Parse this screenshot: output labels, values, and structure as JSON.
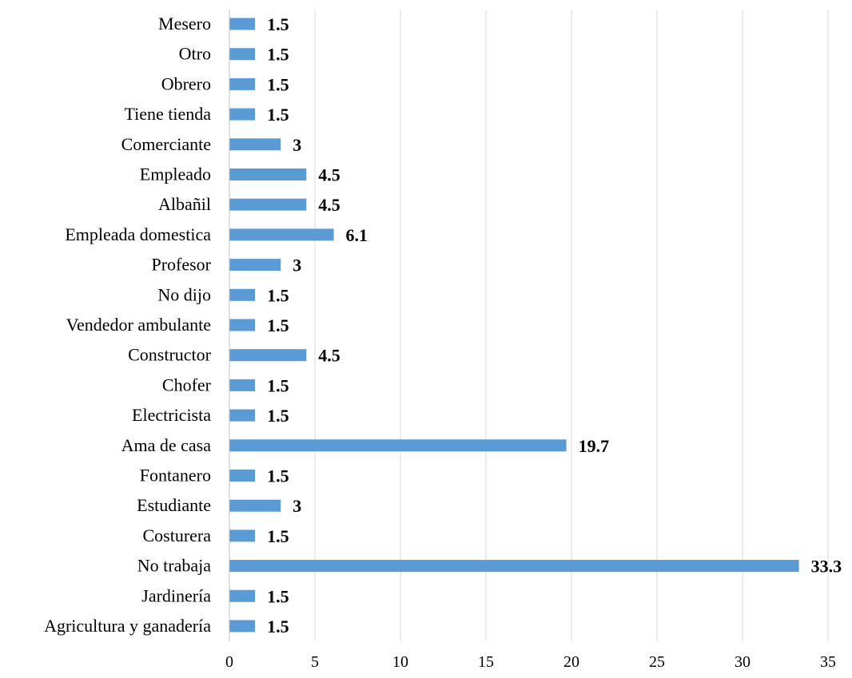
{
  "chart_data": {
    "type": "bar",
    "orientation": "horizontal",
    "title": "",
    "xlabel": "",
    "ylabel": "",
    "categories": [
      "Mesero",
      "Otro",
      "Obrero",
      "Tiene tienda",
      "Comerciante",
      "Empleado",
      "Albañil",
      "Empleada domestica",
      "Profesor",
      "No dijo",
      "Vendedor ambulante",
      "Constructor",
      "Chofer",
      "Electricista",
      "Ama de casa",
      "Fontanero",
      "Estudiante",
      "Costurera",
      "No trabaja",
      "Jardinería",
      "Agricultura y ganadería"
    ],
    "values": [
      1.5,
      1.5,
      1.5,
      1.5,
      3,
      4.5,
      4.5,
      6.1,
      3,
      1.5,
      1.5,
      4.5,
      1.5,
      1.5,
      19.7,
      1.5,
      3,
      1.5,
      33.3,
      1.5,
      1.5
    ],
    "value_labels": [
      "1.5",
      "1.5",
      "1.5",
      "1.5",
      "3",
      "4.5",
      "4.5",
      "6.1",
      "3",
      "1.5",
      "1.5",
      "4.5",
      "1.5",
      "1.5",
      "19.7",
      "1.5",
      "3",
      "1.5",
      "33.3",
      "1.5",
      "1.5"
    ],
    "xlim": [
      0,
      35
    ],
    "xticks": [
      0,
      5,
      10,
      15,
      20,
      25,
      30,
      35
    ],
    "xtick_labels": [
      "0",
      "5",
      "10",
      "15",
      "20",
      "25",
      "30",
      "35"
    ],
    "grid": "vertical",
    "legend": "none",
    "bar_color": "#5b9bd5"
  }
}
